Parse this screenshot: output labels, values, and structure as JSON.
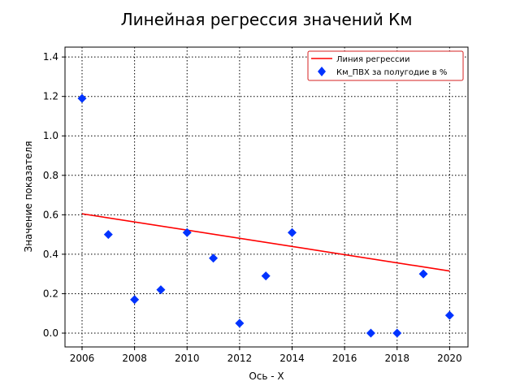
{
  "chart_data": {
    "type": "scatter",
    "title": "Линейная регрессия значений Км",
    "xlabel": "Ось - X",
    "ylabel": "Значение показателя",
    "xlim": [
      2005.35,
      2020.7
    ],
    "ylim": [
      -0.07,
      1.45
    ],
    "x_ticks": [
      2006,
      2008,
      2010,
      2012,
      2014,
      2016,
      2018,
      2020
    ],
    "y_ticks": [
      0.0,
      0.2,
      0.4,
      0.6,
      0.8,
      1.0,
      1.2,
      1.4
    ],
    "grid": true,
    "grid_style": "dotted",
    "legend_position": "top-right",
    "series": [
      {
        "name": "Линия регрессии",
        "kind": "line",
        "color": "#ff0000",
        "x": [
          2006,
          2020
        ],
        "y": [
          0.605,
          0.315
        ]
      },
      {
        "name": "Км_ПВХ за полугодие в %",
        "kind": "scatter",
        "marker": "diamond",
        "color": "#0033ff",
        "x": [
          2006,
          2007,
          2008,
          2009,
          2010,
          2011,
          2012,
          2013,
          2014,
          2017,
          2018,
          2019,
          2020
        ],
        "y": [
          1.19,
          0.5,
          0.17,
          0.22,
          0.51,
          0.38,
          0.05,
          0.29,
          0.51,
          0.0,
          0.0,
          0.3,
          0.09
        ]
      }
    ]
  }
}
